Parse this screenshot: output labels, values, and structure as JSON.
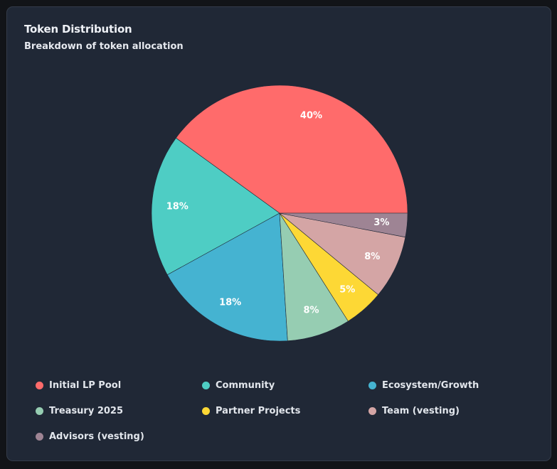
{
  "header": {
    "title": "Token Distribution",
    "subtitle": "Breakdown of token allocation"
  },
  "chart_data": {
    "type": "pie",
    "title": "Token Distribution",
    "subtitle": "Breakdown of token allocation",
    "legend_position": "bottom",
    "slices": [
      {
        "name": "Initial LP Pool",
        "value": 40,
        "label": "40%",
        "color": "#ff6b6b"
      },
      {
        "name": "Community",
        "value": 18,
        "label": "18%",
        "color": "#4ecdc4"
      },
      {
        "name": "Ecosystem/Growth",
        "value": 18,
        "label": "18%",
        "color": "#45b3d1"
      },
      {
        "name": "Treasury 2025",
        "value": 8,
        "label": "8%",
        "color": "#96cdb2"
      },
      {
        "name": "Partner Projects",
        "value": 5,
        "label": "5%",
        "color": "#fdd835"
      },
      {
        "name": "Team (vesting)",
        "value": 8,
        "label": "8%",
        "color": "#d4a5a5"
      },
      {
        "name": "Advisors (vesting)",
        "value": 3,
        "label": "3%",
        "color": "#9e8494"
      }
    ]
  }
}
